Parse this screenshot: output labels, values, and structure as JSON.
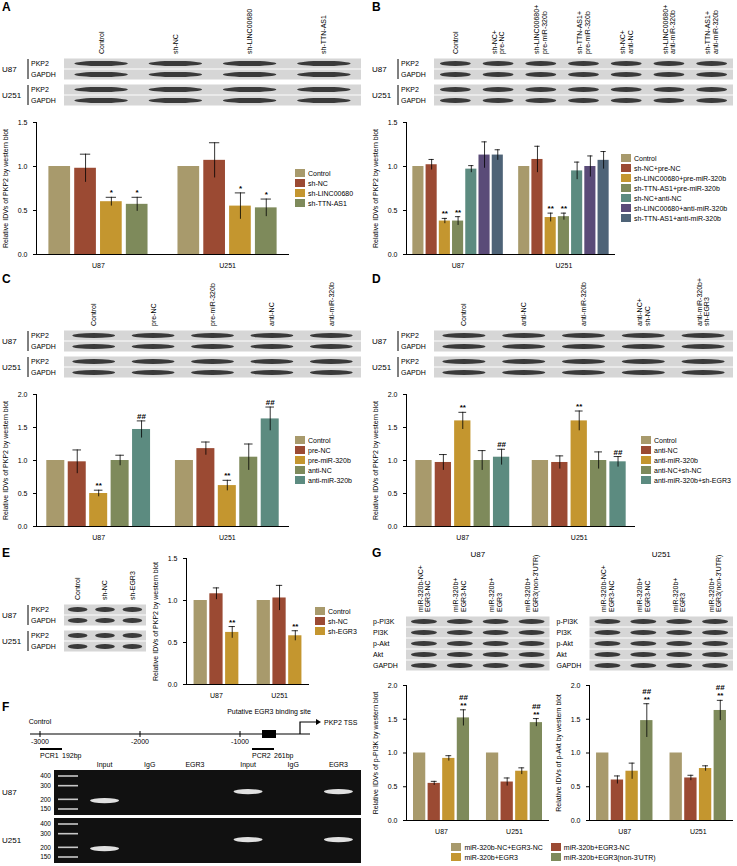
{
  "chart_data": [
    {
      "type": "bar",
      "ylabel": "Relative IDVs of PKP2 by western blot",
      "categories": [
        "U87",
        "U251"
      ],
      "ylim": [
        0,
        1.5
      ],
      "yticks": [
        {
          "value": 0,
          "label": "0.0"
        },
        {
          "value": 0.5,
          "label": "0.5"
        },
        {
          "value": 1,
          "label": "1.0"
        },
        {
          "value": 1.5,
          "label": "1.5"
        }
      ],
      "legend": "right",
      "series": [
        {
          "name": "Control",
          "color": "#a89a6c",
          "values": [
            1.0,
            1.0
          ],
          "errors": [
            0,
            0
          ]
        },
        {
          "name": "sh-NC",
          "color": "#9b4a33",
          "values": [
            0.98,
            1.07
          ],
          "errors": [
            0.16,
            0.2
          ]
        },
        {
          "name": "sh-LINC00680",
          "color": "#c4962f",
          "values": [
            0.6,
            0.55
          ],
          "errors": [
            0.05,
            0.15
          ],
          "annotations": [
            "*",
            "*"
          ]
        },
        {
          "name": "sh-TTN-AS1",
          "color": "#7e8a5b",
          "values": [
            0.57,
            0.53
          ],
          "errors": [
            0.08,
            0.1
          ],
          "annotations": [
            "*",
            "*"
          ]
        }
      ]
    },
    {
      "type": "bar",
      "ylabel": "Relative IDVs of PKP2 by western blot",
      "categories": [
        "U87",
        "U251"
      ],
      "ylim": [
        0,
        1.5
      ],
      "yticks": [
        {
          "value": 0,
          "label": "0.0"
        },
        {
          "value": 0.5,
          "label": "0.5"
        },
        {
          "value": 1,
          "label": "1.0"
        },
        {
          "value": 1.5,
          "label": "1.5"
        }
      ],
      "legend": "right",
      "series": [
        {
          "name": "Control",
          "color": "#a89a6c",
          "values": [
            1.0,
            1.0
          ],
          "errors": [
            0,
            0
          ]
        },
        {
          "name": "sh-NC+pre-NC",
          "color": "#9b4a33",
          "values": [
            1.02,
            1.08
          ],
          "errors": [
            0.06,
            0.15
          ]
        },
        {
          "name": "sh-LINC00680+pre-miR-320b",
          "color": "#c4962f",
          "values": [
            0.38,
            0.42
          ],
          "errors": [
            0.03,
            0.05
          ],
          "annotations": [
            "**",
            "**"
          ]
        },
        {
          "name": "sh-TTN-AS1+pre-miR-320b",
          "color": "#7e8a5b",
          "values": [
            0.38,
            0.43
          ],
          "errors": [
            0.05,
            0.04
          ],
          "annotations": [
            "**",
            "**"
          ]
        },
        {
          "name": "sh-NC+anti-NC",
          "color": "#5c8b80",
          "values": [
            0.97,
            0.95
          ],
          "errors": [
            0.04,
            0.1
          ]
        },
        {
          "name": "sh-LINC00680+anti-miR-320b",
          "color": "#5a4b78",
          "values": [
            1.13,
            1.0
          ],
          "errors": [
            0.15,
            0.12
          ]
        },
        {
          "name": "sh-TTN-AS1+anti-miR-320b",
          "color": "#4e6377",
          "values": [
            1.13,
            1.07
          ],
          "errors": [
            0.06,
            0.1
          ]
        }
      ]
    },
    {
      "type": "bar",
      "ylabel": "Relative IDVs of PKP2 by western blot",
      "categories": [
        "U87",
        "U251"
      ],
      "ylim": [
        0,
        2
      ],
      "yticks": [
        {
          "value": 0,
          "label": "0.0"
        },
        {
          "value": 0.5,
          "label": "0.5"
        },
        {
          "value": 1,
          "label": "1.0"
        },
        {
          "value": 1.5,
          "label": "1.5"
        },
        {
          "value": 2,
          "label": "2.0"
        }
      ],
      "legend": "right",
      "series": [
        {
          "name": "Control",
          "color": "#a89a6c",
          "values": [
            1.0,
            1.0
          ],
          "errors": [
            0,
            0
          ]
        },
        {
          "name": "pre-NC",
          "color": "#9b4a33",
          "values": [
            0.98,
            1.18
          ],
          "errors": [
            0.18,
            0.1
          ]
        },
        {
          "name": "pre-miR-320b",
          "color": "#c4962f",
          "values": [
            0.5,
            0.62
          ],
          "errors": [
            0.05,
            0.08
          ],
          "annotations": [
            "**",
            "**"
          ]
        },
        {
          "name": "anti-NC",
          "color": "#7e8a5b",
          "values": [
            1.0,
            1.05
          ],
          "errors": [
            0.08,
            0.2
          ]
        },
        {
          "name": "anti-miR-320b",
          "color": "#5c8b80",
          "values": [
            1.47,
            1.63
          ],
          "errors": [
            0.13,
            0.18
          ],
          "annotations": [
            "##",
            "##"
          ]
        }
      ]
    },
    {
      "type": "bar",
      "ylabel": "Relative IDVs of PKP2 by western blot",
      "categories": [
        "U87",
        "U251"
      ],
      "ylim": [
        0,
        2
      ],
      "yticks": [
        {
          "value": 0,
          "label": "0.0"
        },
        {
          "value": 0.5,
          "label": "0.5"
        },
        {
          "value": 1,
          "label": "1.0"
        },
        {
          "value": 1.5,
          "label": "1.5"
        },
        {
          "value": 2,
          "label": "2.0"
        }
      ],
      "legend": "right",
      "series": [
        {
          "name": "Control",
          "color": "#a89a6c",
          "values": [
            1.0,
            1.0
          ],
          "errors": [
            0,
            0
          ]
        },
        {
          "name": "anti-NC",
          "color": "#9b4a33",
          "values": [
            0.97,
            0.97
          ],
          "errors": [
            0.12,
            0.1
          ]
        },
        {
          "name": "anti-miR-320b",
          "color": "#c4962f",
          "values": [
            1.6,
            1.6
          ],
          "errors": [
            0.13,
            0.15
          ],
          "annotations": [
            "**",
            "**"
          ]
        },
        {
          "name": "anti-NC+sh-NC",
          "color": "#7e8a5b",
          "values": [
            1.0,
            1.0
          ],
          "errors": [
            0.15,
            0.13
          ]
        },
        {
          "name": "anti-miR-320b+sh-EGR3",
          "color": "#5c8b80",
          "values": [
            1.05,
            0.98
          ],
          "errors": [
            0.12,
            0.08
          ],
          "annotations": [
            "##",
            "##"
          ]
        }
      ]
    },
    {
      "type": "bar",
      "ylabel": "Relative IDVs of PKP2 by western blot",
      "categories": [
        "U87",
        "U251"
      ],
      "ylim": [
        0,
        1.5
      ],
      "yticks": [
        {
          "value": 0,
          "label": "0.0"
        },
        {
          "value": 0.5,
          "label": "0.5"
        },
        {
          "value": 1,
          "label": "1.0"
        },
        {
          "value": 1.5,
          "label": "1.5"
        }
      ],
      "legend": "right",
      "series": [
        {
          "name": "Control",
          "color": "#a89a6c",
          "values": [
            1.0,
            1.0
          ],
          "errors": [
            0,
            0
          ]
        },
        {
          "name": "sh-NC",
          "color": "#9b4a33",
          "values": [
            1.08,
            1.03
          ],
          "errors": [
            0.07,
            0.15
          ]
        },
        {
          "name": "sh-EGR3",
          "color": "#c4962f",
          "values": [
            0.62,
            0.58
          ],
          "errors": [
            0.07,
            0.06
          ],
          "annotations": [
            "**",
            "**"
          ]
        }
      ]
    },
    {
      "type": "bar",
      "ylabel": "Relative IDVs of p-PI3K by western blot",
      "categories": [
        "U87",
        "U251"
      ],
      "ylim": [
        0,
        2
      ],
      "yticks": [
        {
          "value": 0,
          "label": "0.0"
        },
        {
          "value": 0.5,
          "label": "0.5"
        },
        {
          "value": 1,
          "label": "1.0"
        },
        {
          "value": 1.5,
          "label": "1.5"
        },
        {
          "value": 2,
          "label": "2.0"
        }
      ],
      "legend": "bottom",
      "series": [
        {
          "name": "miR-320b-NC+EGR3-NC",
          "color": "#a89a6c",
          "values": [
            1.0,
            1.0
          ],
          "errors": [
            0,
            0
          ]
        },
        {
          "name": "miR-320b+EGR3-NC",
          "color": "#9b4a33",
          "values": [
            0.55,
            0.57
          ],
          "errors": [
            0.03,
            0.06
          ]
        },
        {
          "name": "miR-320b+EGR3",
          "color": "#c4962f",
          "values": [
            0.92,
            0.73
          ],
          "errors": [
            0.04,
            0.05
          ]
        },
        {
          "name": "miR-320b+EGR3(non-3'UTR)",
          "color": "#7e8a5b",
          "values": [
            1.52,
            1.45
          ],
          "errors": [
            0.12,
            0.06
          ],
          "annotations": [
            "##\n**",
            "##\n**"
          ]
        }
      ]
    },
    {
      "type": "bar",
      "ylabel": "Relative IDVs of p-Akt by western blot",
      "categories": [
        "U87",
        "U251"
      ],
      "ylim": [
        0,
        2
      ],
      "yticks": [
        {
          "value": 0,
          "label": "0.0"
        },
        {
          "value": 0.5,
          "label": "0.5"
        },
        {
          "value": 1,
          "label": "1.0"
        },
        {
          "value": 1.5,
          "label": "1.5"
        },
        {
          "value": 2,
          "label": "2.0"
        }
      ],
      "series": [
        {
          "name": "miR-320b-NC+EGR3-NC",
          "color": "#a89a6c",
          "values": [
            1.0,
            1.0
          ],
          "errors": [
            0,
            0
          ]
        },
        {
          "name": "miR-320b+EGR3-NC",
          "color": "#9b4a33",
          "values": [
            0.6,
            0.63
          ],
          "errors": [
            0.06,
            0.04
          ]
        },
        {
          "name": "miR-320b+EGR3",
          "color": "#c4962f",
          "values": [
            0.73,
            0.77
          ],
          "errors": [
            0.12,
            0.04
          ]
        },
        {
          "name": "miR-320b+EGR3(non-3'UTR)",
          "color": "#7e8a5b",
          "values": [
            1.48,
            1.63
          ],
          "errors": [
            0.25,
            0.15
          ],
          "annotations": [
            "##\n**",
            "##\n**"
          ]
        }
      ]
    }
  ],
  "blots": [
    {
      "panel": "A",
      "lanes": [
        "Control",
        "sh-NC",
        "sh-LINC00680",
        "sh-TTN-AS1"
      ],
      "cells": [
        {
          "name": "U87",
          "rows": [
            "PKP2",
            "GAPDH"
          ]
        },
        {
          "name": "U251",
          "rows": [
            "PKP2",
            "GAPDH"
          ]
        }
      ]
    },
    {
      "panel": "B",
      "lanes": [
        "Control",
        "sh-NC+pre-NC",
        "sh-LINC00680+pre-miR-320b",
        "sh-TTN-AS1+pre-miR-320b",
        "sh-NC+anti-NC",
        "sh-LINC00680+anti-miR-320b",
        "sh-TTN-AS1+anti-miR-320b"
      ],
      "cells": [
        {
          "name": "U87",
          "rows": [
            "PKP2",
            "GAPDH"
          ]
        },
        {
          "name": "U251",
          "rows": [
            "PKP2",
            "GAPDH"
          ]
        }
      ]
    },
    {
      "panel": "C",
      "lanes": [
        "Control",
        "pre-NC",
        "pre-miR-320b",
        "anti-NC",
        "anti-miR-320b"
      ],
      "cells": [
        {
          "name": "U87",
          "rows": [
            "PKP2",
            "GAPDH"
          ]
        },
        {
          "name": "U251",
          "rows": [
            "PKP2",
            "GAPDH"
          ]
        }
      ]
    },
    {
      "panel": "D",
      "lanes": [
        "Control",
        "anti-NC",
        "anti-miR-320b",
        "anti-NC+sh-NC",
        "anti-miR-320b+sh-EGR3"
      ],
      "cells": [
        {
          "name": "U87",
          "rows": [
            "PKP2",
            "GAPDH"
          ]
        },
        {
          "name": "U251",
          "rows": [
            "PKP2",
            "GAPDH"
          ]
        }
      ]
    },
    {
      "panel": "E",
      "lanes": [
        "Control",
        "sh-NC",
        "sh-EGR3"
      ],
      "cells": [
        {
          "name": "U87",
          "rows": [
            "PKP2",
            "GAPDH"
          ]
        },
        {
          "name": "U251",
          "rows": [
            "PKP2",
            "GAPDH"
          ]
        }
      ]
    },
    {
      "panel": "G",
      "lanes": [
        "miR-320b-NC+EGR3-NC",
        "miR-320b+EGR3-NC",
        "miR-320b+EGR3",
        "miR-320b+EGR3(non-3'UTR)"
      ],
      "cells": [
        {
          "name": "U87",
          "rows": [
            "p-PI3K",
            "PI3K",
            "p-Akt",
            "Akt",
            "GAPDH"
          ]
        },
        {
          "name": "U251",
          "rows": [
            "p-PI3K",
            "PI3K",
            "p-Akt",
            "Akt",
            "GAPDH"
          ]
        }
      ]
    }
  ],
  "diagram": {
    "panel": "F",
    "ticks": [
      -3000,
      -2000,
      -1000
    ],
    "control": "Control",
    "site": "Putative EGR3 binding site",
    "tss": "PKP2 TSS",
    "pcr": [
      {
        "name": "PCR1",
        "size": "192bp"
      },
      {
        "name": "PCR2",
        "size": "261bp"
      }
    ]
  },
  "gels": {
    "lanes": [
      "Input",
      "IgG",
      "EGR3",
      "Input",
      "IgG",
      "EGR3"
    ],
    "cells": [
      {
        "name": "U87",
        "ladder": [
          400,
          300,
          200,
          150
        ],
        "bands": [
          true,
          false,
          false,
          true,
          false,
          true
        ]
      },
      {
        "name": "U251",
        "ladder": [
          400,
          300,
          200,
          150
        ],
        "bands": [
          true,
          false,
          false,
          true,
          false,
          true
        ]
      }
    ]
  }
}
